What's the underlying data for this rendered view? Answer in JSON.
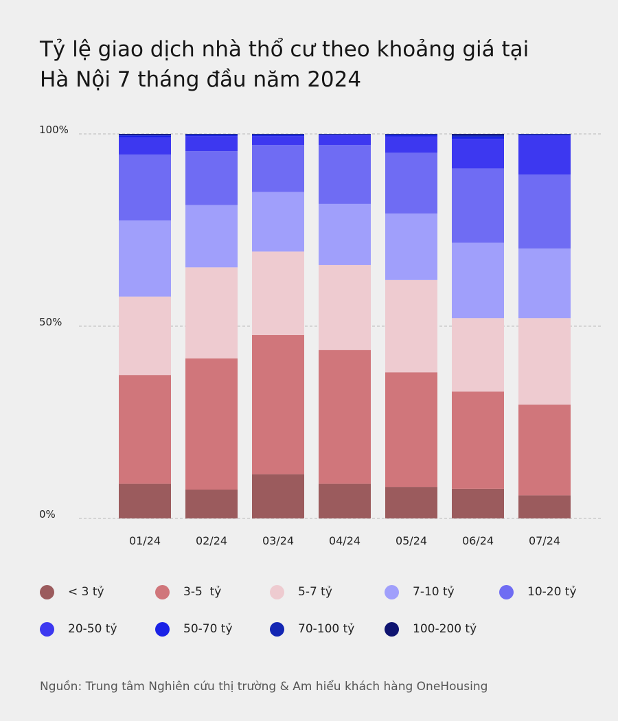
{
  "header": {
    "title_line1": "Tỷ lệ giao dịch nhà thổ cư theo khoảng giá tại",
    "title_line2": "Hà Nội 7 tháng đầu năm 2024"
  },
  "chart_data": {
    "type": "bar",
    "stacked": true,
    "title": "Tỷ lệ giao dịch nhà thổ cư theo khoảng giá tại Hà Nội 7 tháng đầu năm 2024",
    "categories": [
      "01/24",
      "02/24",
      "03/24",
      "04/24",
      "05/24",
      "06/24",
      "07/24"
    ],
    "ylim": [
      0,
      100
    ],
    "yticks": [
      0,
      50,
      100
    ],
    "ytick_labels": [
      "0%",
      "50%",
      "100%"
    ],
    "grid": true,
    "xlabel": "",
    "ylabel": "",
    "series": [
      {
        "name": "< 3 tỷ",
        "color": "#9b5b5d",
        "values": [
          9,
          7.5,
          11.5,
          9,
          8.2,
          7.7,
          6
        ]
      },
      {
        "name": "3-5  tỷ",
        "color": "#d0767b",
        "values": [
          28.3,
          34.1,
          36.2,
          34.8,
          29.8,
          25.3,
          23.6
        ]
      },
      {
        "name": "5-7 tỷ",
        "color": "#eecbd0",
        "values": [
          20.4,
          23.7,
          21.7,
          22.1,
          24,
          19.1,
          22.5
        ]
      },
      {
        "name": "7-10 tỷ",
        "color": "#a09ffb",
        "values": [
          19.8,
          16.2,
          15.5,
          15.9,
          17.3,
          19.6,
          18.1
        ]
      },
      {
        "name": "10-20 tỷ",
        "color": "#6f6cf3",
        "values": [
          17.1,
          14,
          12.2,
          15.3,
          15.8,
          19.3,
          19.2
        ]
      },
      {
        "name": "20-50 tỷ",
        "color": "#3d38f0",
        "values": [
          4.5,
          3.9,
          2.3,
          2.6,
          4.2,
          7.7,
          10.1
        ]
      },
      {
        "name": "50-70 tỷ",
        "color": "#1a22e6",
        "values": [
          0.5,
          0.3,
          0.3,
          0.1,
          0.4,
          0.6,
          0.3
        ]
      },
      {
        "name": "70-100 tỷ",
        "color": "#1326b3",
        "values": [
          0.2,
          0.2,
          0.2,
          0.1,
          0.2,
          0.4,
          0.1
        ]
      },
      {
        "name": "100-200 tỷ",
        "color": "#0f1470",
        "values": [
          0.2,
          0.1,
          0.1,
          0.1,
          0.1,
          0.3,
          0.1
        ]
      }
    ]
  },
  "source": "Nguồn: Trung tâm Nghiên cứu thị trường & Am hiểu khách hàng OneHousing"
}
